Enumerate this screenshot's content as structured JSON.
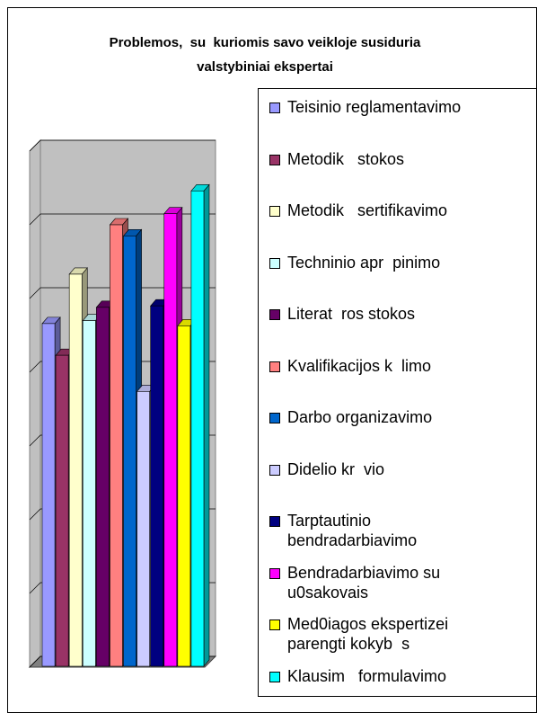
{
  "chart_data": {
    "type": "bar3d",
    "title": "Problemos,  su  kuriomis savo veikloje susiduria valstybiniai ekspertai",
    "series": [
      {
        "name": "Teisinio reglamentavimo",
        "color": "#9999ff",
        "values": [
          4.66
        ]
      },
      {
        "name": "Metodik   stokos",
        "color": "#993366",
        "values": [
          4.23
        ]
      },
      {
        "name": "Metodik   sertifikavimo",
        "color": "#ffffcc",
        "values": [
          5.33
        ]
      },
      {
        "name": "Techninio apr  pinimo",
        "color": "#ccffff",
        "values": [
          4.7
        ]
      },
      {
        "name": "Literat  ros stokos",
        "color": "#660066",
        "values": [
          4.88
        ]
      },
      {
        "name": "Kvalifikacijos k  limo",
        "color": "#ff8080",
        "values": [
          6.0
        ]
      },
      {
        "name": "Darbo organizavimo",
        "color": "#0066cc",
        "values": [
          5.85
        ]
      },
      {
        "name": "Didelio kr  vio",
        "color": "#ccccff",
        "values": [
          3.74
        ]
      },
      {
        "name": "Tarptautinio bendradarbiavimo",
        "color": "#000080",
        "values": [
          4.9
        ]
      },
      {
        "name": "Bendradarbiavimo su u0sakovais",
        "color": "#ff00ff",
        "values": [
          6.15
        ]
      },
      {
        "name": "Med0iagos ekspertizei parengti kokyb  s",
        "color": "#ffff00",
        "values": [
          4.63
        ]
      },
      {
        "name": "Klausim   formulavimo",
        "color": "#00ffff",
        "values": [
          6.46
        ]
      }
    ],
    "ylim": [
      0,
      7
    ],
    "yticks": [
      0,
      1,
      2,
      3,
      4,
      5,
      6,
      7
    ],
    "grid": true
  }
}
